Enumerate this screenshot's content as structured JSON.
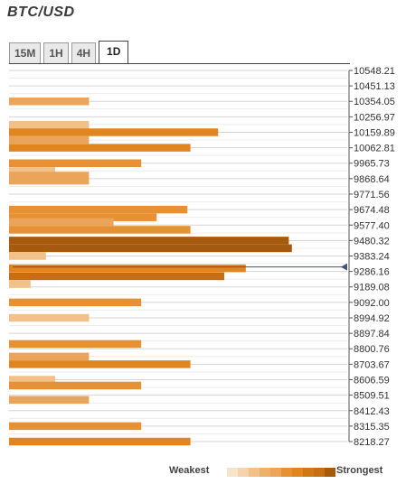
{
  "header": {
    "title": "BTC/USD"
  },
  "tabs": [
    {
      "label": "15M",
      "active": false
    },
    {
      "label": "1H",
      "active": false
    },
    {
      "label": "4H",
      "active": false
    },
    {
      "label": "1D",
      "active": true
    }
  ],
  "colors": {
    "weakest": "#f3cfa3",
    "strongest": "#9c5511",
    "palette": [
      "#f6d9b6",
      "#f1c189",
      "#eaa55a",
      "#e69234",
      "#e08520",
      "#c56e14",
      "#a65a0e"
    ],
    "grid": "#d5d5d5",
    "marker": "#3e5574"
  },
  "legend": {
    "weakest_label": "Weakest",
    "strongest_label": "Strongest"
  },
  "chart_data": {
    "type": "bar",
    "orientation": "horizontal",
    "title": "BTC/USD",
    "y_tick_labels": [
      "10548.21",
      "10451.13",
      "10354.05",
      "10256.97",
      "10159.89",
      "10062.81",
      "9965.73",
      "9868.64",
      "9771.56",
      "9674.48",
      "9577.40",
      "9480.32",
      "9383.24",
      "9286.16",
      "9189.08",
      "9092.00",
      "8994.92",
      "8897.84",
      "8800.76",
      "8703.67",
      "8606.59",
      "8509.51",
      "8412.43",
      "8315.35",
      "8218.27"
    ],
    "ylim": [
      8218.27,
      10548.21
    ],
    "current_price": 9286.16,
    "xlim": [
      0,
      10
    ],
    "bars": [
      {
        "level": 10354.05,
        "value": 2.6,
        "strength": 2
      },
      {
        "level": 10207.0,
        "value": 2.6,
        "strength": 1
      },
      {
        "level": 10159.89,
        "value": 6.8,
        "strength": 4
      },
      {
        "level": 10112.0,
        "value": 2.6,
        "strength": 2
      },
      {
        "level": 10062.81,
        "value": 5.9,
        "strength": 4
      },
      {
        "level": 9965.73,
        "value": 4.3,
        "strength": 3
      },
      {
        "level": 9917.0,
        "value": 1.5,
        "strength": 1
      },
      {
        "level": 9888.0,
        "value": 2.6,
        "strength": 2
      },
      {
        "level": 9856.0,
        "value": 2.6,
        "strength": 2
      },
      {
        "level": 9674.48,
        "value": 5.8,
        "strength": 3
      },
      {
        "level": 9626.0,
        "value": 4.8,
        "strength": 3
      },
      {
        "level": 9596.0,
        "value": 3.4,
        "strength": 2
      },
      {
        "level": 9548.0,
        "value": 5.9,
        "strength": 3
      },
      {
        "level": 9480.32,
        "value": 9.1,
        "strength": 6
      },
      {
        "level": 9432.0,
        "value": 9.2,
        "strength": 6
      },
      {
        "level": 9383.24,
        "value": 1.2,
        "strength": 1
      },
      {
        "level": 9306.0,
        "value": 7.7,
        "strength": 4
      },
      {
        "level": 9256.0,
        "value": 7.0,
        "strength": 5
      },
      {
        "level": 9207.0,
        "value": 0.7,
        "strength": 1
      },
      {
        "level": 9092.0,
        "value": 4.3,
        "strength": 3
      },
      {
        "level": 8994.92,
        "value": 2.6,
        "strength": 1
      },
      {
        "level": 8831.0,
        "value": 4.3,
        "strength": 3
      },
      {
        "level": 8752.0,
        "value": 2.6,
        "strength": 2
      },
      {
        "level": 8703.67,
        "value": 5.9,
        "strength": 4
      },
      {
        "level": 8606.59,
        "value": 1.5,
        "strength": 1
      },
      {
        "level": 8570.0,
        "value": 4.3,
        "strength": 3
      },
      {
        "level": 8480.0,
        "value": 2.6,
        "strength": 2
      },
      {
        "level": 8315.35,
        "value": 4.3,
        "strength": 3
      },
      {
        "level": 8218.27,
        "value": 5.9,
        "strength": 4
      }
    ],
    "grid": true,
    "legend_position": "bottom-right"
  }
}
